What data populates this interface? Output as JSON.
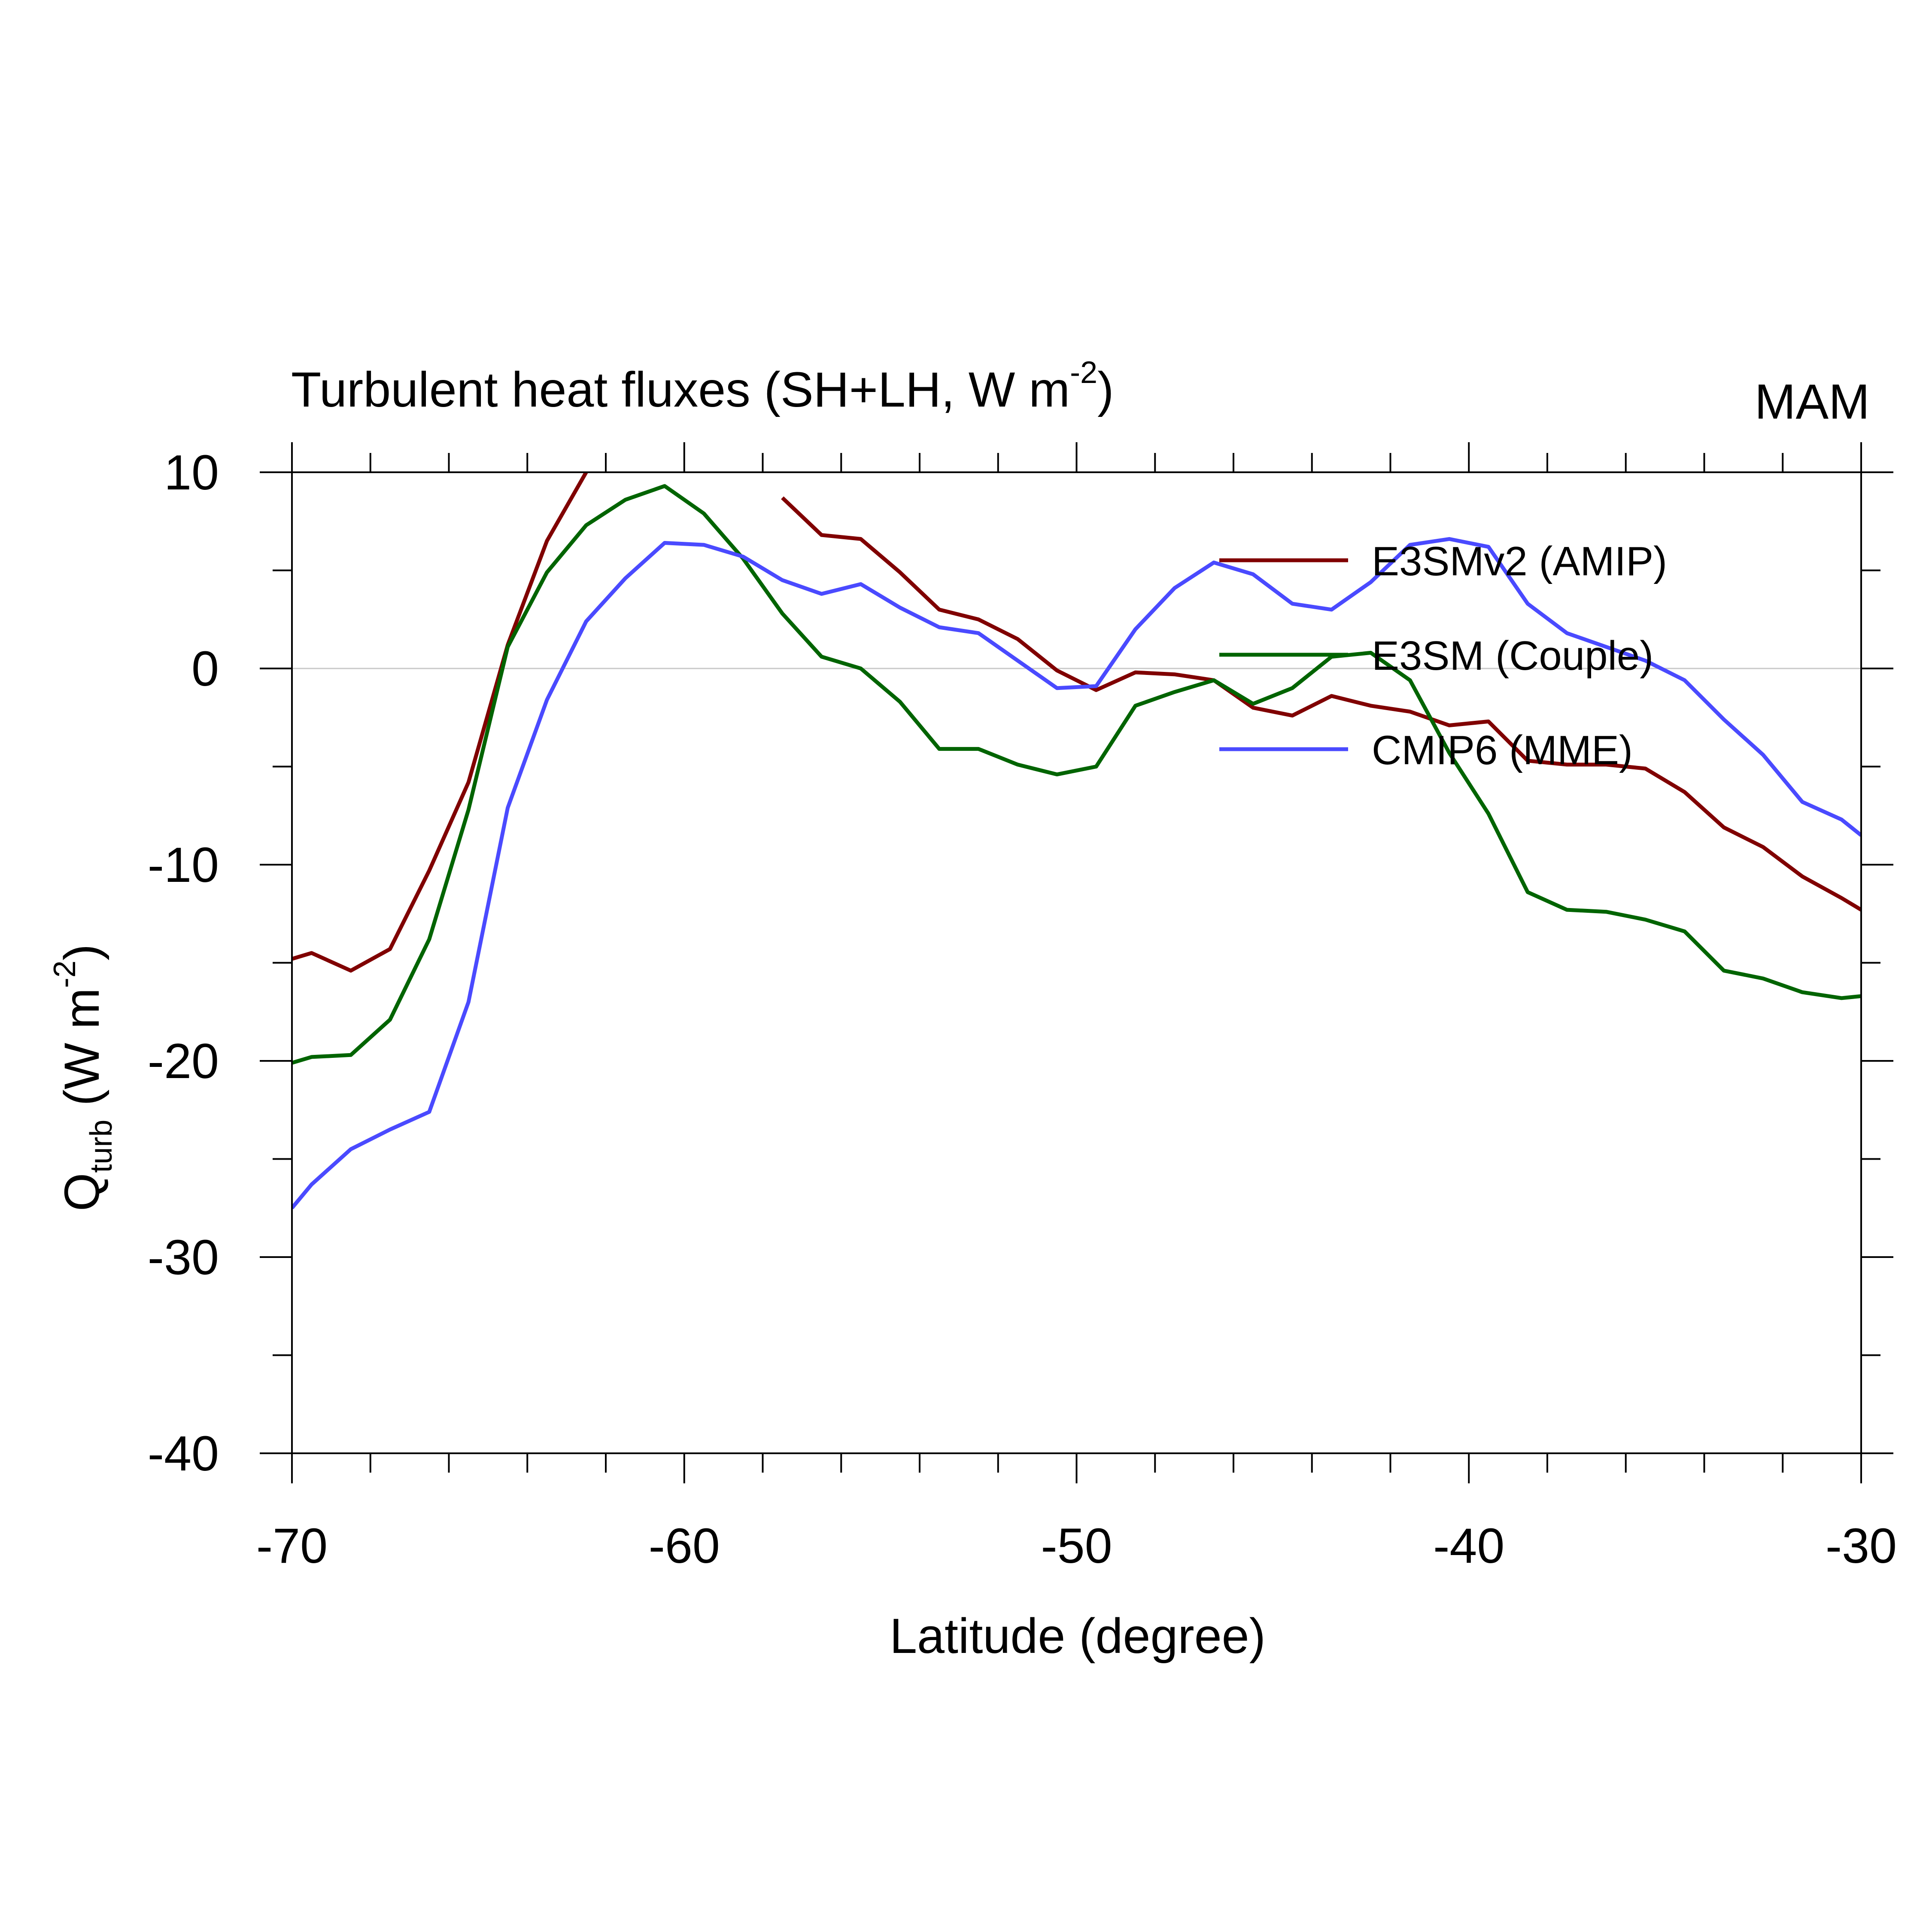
{
  "chart_data": {
    "type": "line",
    "title": "Turbulent heat fluxes (SH+LH, W m",
    "title_superscript": "-2",
    "title_suffix": ")",
    "season_label": "MAM",
    "xlabel": "Latitude (degree)",
    "ylabel_main": "Q",
    "ylabel_subscript": "turb",
    "ylabel_units": " (W m",
    "ylabel_superscript": "-2",
    "ylabel_suffix": ")",
    "xlim": [
      -70,
      -30
    ],
    "ylim": [
      -40,
      10
    ],
    "xticks": [
      -70,
      -60,
      -50,
      -40,
      -30
    ],
    "xtick_labels": [
      "-70",
      "-60",
      "-50",
      "-40",
      "-30"
    ],
    "yticks": [
      10,
      0,
      -10,
      -20,
      -30,
      -40
    ],
    "ytick_labels": [
      "10",
      "0",
      "-10",
      "-20",
      "-30",
      "-40"
    ],
    "zero_line": true,
    "legend_position": "top-right",
    "x": [
      -70,
      -69.5,
      -68.5,
      -67.5,
      -66.5,
      -65.5,
      -64.5,
      -63.5,
      -62.5,
      -61.5,
      -60.5,
      -59.5,
      -58.5,
      -57.5,
      -56.5,
      -55.5,
      -54.5,
      -53.5,
      -52.5,
      -51.5,
      -50.5,
      -49.5,
      -48.5,
      -47.5,
      -46.5,
      -45.5,
      -44.5,
      -43.5,
      -42.5,
      -41.5,
      -40.5,
      -39.5,
      -38.5,
      -37.5,
      -36.5,
      -35.5,
      -34.5,
      -33.5,
      -32.5,
      -31.5,
      -30.5,
      -30
    ],
    "series": [
      {
        "name": "E3SMv2 (AMIP)",
        "color": "#800000",
        "values": [
          -14.8,
          -14.5,
          -15.4,
          -14.3,
          -10.3,
          -5.8,
          1.2,
          6.5,
          10.0,
          null,
          null,
          null,
          null,
          8.7,
          6.8,
          6.6,
          4.9,
          3.0,
          2.5,
          1.5,
          -0.1,
          -1.1,
          -0.2,
          -0.3,
          -0.6,
          -2.0,
          -2.4,
          -1.4,
          -1.9,
          -2.2,
          -2.9,
          -2.7,
          -4.7,
          -4.9,
          -4.9,
          -5.1,
          -6.3,
          -8.1,
          -9.1,
          -10.6,
          -11.7,
          -12.3
        ]
      },
      {
        "name": "E3SM (Couple)",
        "color": "#006400",
        "values": [
          -20.1,
          -19.8,
          -19.7,
          -17.9,
          -13.8,
          -7.2,
          1.1,
          4.9,
          7.3,
          8.6,
          9.3,
          7.9,
          5.6,
          2.8,
          0.6,
          0.0,
          -1.7,
          -4.1,
          -4.1,
          -4.9,
          -5.4,
          -5.0,
          -1.9,
          -1.2,
          -0.6,
          -1.8,
          -1.0,
          0.6,
          0.8,
          -0.6,
          -4.3,
          -7.4,
          -11.4,
          -12.3,
          -12.4,
          -12.8,
          -13.4,
          -15.4,
          -15.8,
          -16.5,
          -16.8,
          -16.7
        ]
      },
      {
        "name": "CMIP6 (MME)",
        "color": "#4a4aff",
        "values": [
          -27.5,
          -26.3,
          -24.5,
          -23.5,
          -22.6,
          -17.0,
          -7.1,
          -1.6,
          2.4,
          4.6,
          6.4,
          6.3,
          5.7,
          4.5,
          3.8,
          4.3,
          3.1,
          2.1,
          1.8,
          0.4,
          -1.0,
          -0.9,
          2.0,
          4.1,
          5.4,
          4.8,
          3.3,
          3.0,
          4.4,
          6.3,
          6.6,
          6.2,
          3.3,
          1.8,
          1.1,
          0.4,
          -0.6,
          -2.6,
          -4.4,
          -6.8,
          -7.7,
          -8.5
        ]
      }
    ]
  }
}
